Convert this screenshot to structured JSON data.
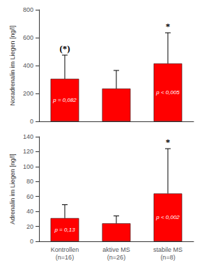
{
  "chart_data": [
    {
      "type": "bar",
      "ylabel": "Noradrenalin im Liegen [ng/l]",
      "categories": [
        null,
        null,
        null
      ],
      "values": [
        305,
        235,
        415
      ],
      "errors": [
        170,
        130,
        220
      ],
      "color": "#ff0000",
      "p_labels": [
        "p = 0,082",
        null,
        "p < 0,005"
      ],
      "significance": [
        "(*)",
        null,
        "*"
      ],
      "ylim": [
        0,
        800
      ],
      "yticks": [
        0,
        200,
        400,
        600,
        800
      ],
      "grid": false
    },
    {
      "type": "bar",
      "ylabel": "Adrenalin im Liegen [ng/l]",
      "categories": [
        "Kontrollen\n(n=16)",
        "aktive MS\n(n=26)",
        "stabile MS\n(n=8)"
      ],
      "values": [
        31,
        24,
        64
      ],
      "errors": [
        18,
        10,
        60
      ],
      "color": "#ff0000",
      "p_labels": [
        "p = 0,13",
        null,
        "p < 0,002"
      ],
      "significance": [
        null,
        null,
        "*"
      ],
      "ylim": [
        0,
        140
      ],
      "yticks": [
        0,
        20,
        40,
        60,
        80,
        100,
        120,
        140
      ],
      "grid": false
    }
  ]
}
